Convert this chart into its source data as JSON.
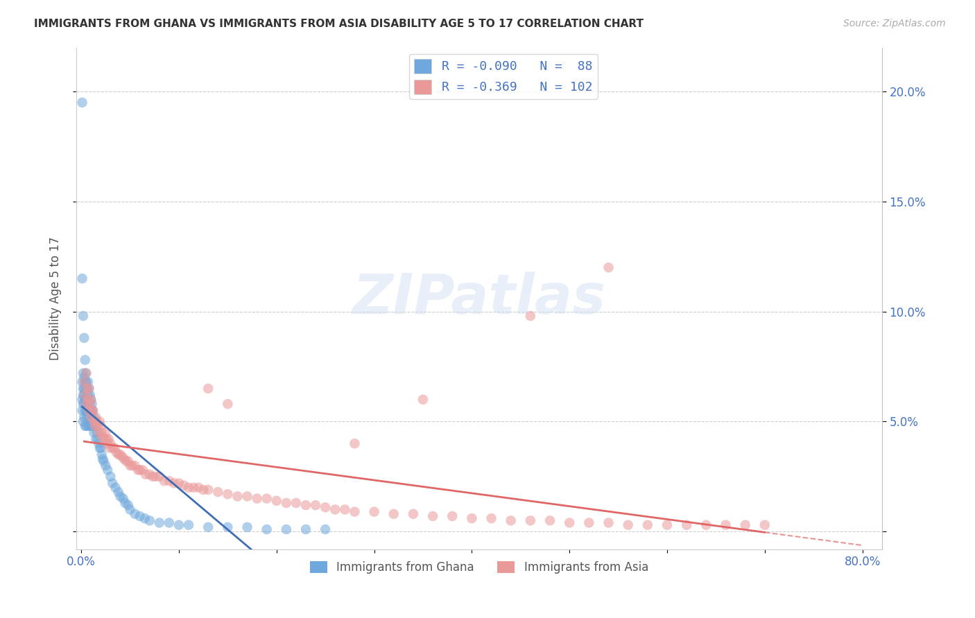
{
  "title": "IMMIGRANTS FROM GHANA VS IMMIGRANTS FROM ASIA DISABILITY AGE 5 TO 17 CORRELATION CHART",
  "source": "Source: ZipAtlas.com",
  "ylabel": "Disability Age 5 to 17",
  "xlim": [
    -0.005,
    0.82
  ],
  "ylim": [
    -0.008,
    0.22
  ],
  "yticks": [
    0.0,
    0.05,
    0.1,
    0.15,
    0.2
  ],
  "ytick_labels_right": [
    "",
    "5.0%",
    "10.0%",
    "15.0%",
    "20.0%"
  ],
  "xtick_labels": [
    "0.0%",
    "",
    "",
    "",
    "",
    "",
    "",
    "",
    "80.0%"
  ],
  "ghana_R": -0.09,
  "ghana_N": 88,
  "asia_R": -0.369,
  "asia_N": 102,
  "ghana_color": "#6fa8dc",
  "asia_color": "#ea9999",
  "ghana_line_color": "#3d6eb5",
  "asia_line_color": "#e06666",
  "watermark": "ZIPatlas",
  "legend_label_ghana": "Immigrants from Ghana",
  "legend_label_asia": "Immigrants from Asia",
  "ghana_x": [
    0.001,
    0.001,
    0.001,
    0.001,
    0.002,
    0.002,
    0.002,
    0.002,
    0.002,
    0.003,
    0.003,
    0.003,
    0.003,
    0.003,
    0.004,
    0.004,
    0.004,
    0.004,
    0.005,
    0.005,
    0.005,
    0.005,
    0.005,
    0.005,
    0.006,
    0.006,
    0.006,
    0.006,
    0.007,
    0.007,
    0.007,
    0.007,
    0.008,
    0.008,
    0.008,
    0.009,
    0.009,
    0.009,
    0.01,
    0.01,
    0.01,
    0.011,
    0.011,
    0.012,
    0.012,
    0.013,
    0.013,
    0.014,
    0.015,
    0.015,
    0.016,
    0.017,
    0.018,
    0.019,
    0.02,
    0.021,
    0.022,
    0.023,
    0.025,
    0.027,
    0.03,
    0.032,
    0.035,
    0.038,
    0.04,
    0.043,
    0.045,
    0.048,
    0.05,
    0.055,
    0.06,
    0.065,
    0.07,
    0.08,
    0.09,
    0.1,
    0.11,
    0.13,
    0.15,
    0.17,
    0.19,
    0.21,
    0.23,
    0.25,
    0.001,
    0.002,
    0.003,
    0.004
  ],
  "ghana_y": [
    0.195,
    0.068,
    0.055,
    0.06,
    0.072,
    0.065,
    0.058,
    0.05,
    0.062,
    0.07,
    0.065,
    0.058,
    0.052,
    0.062,
    0.068,
    0.06,
    0.055,
    0.048,
    0.072,
    0.065,
    0.06,
    0.055,
    0.048,
    0.068,
    0.065,
    0.058,
    0.052,
    0.06,
    0.068,
    0.062,
    0.055,
    0.048,
    0.065,
    0.058,
    0.052,
    0.062,
    0.055,
    0.048,
    0.06,
    0.055,
    0.048,
    0.058,
    0.052,
    0.055,
    0.048,
    0.052,
    0.045,
    0.05,
    0.048,
    0.042,
    0.045,
    0.042,
    0.04,
    0.038,
    0.038,
    0.035,
    0.033,
    0.032,
    0.03,
    0.028,
    0.025,
    0.022,
    0.02,
    0.018,
    0.016,
    0.015,
    0.013,
    0.012,
    0.01,
    0.008,
    0.007,
    0.006,
    0.005,
    0.004,
    0.004,
    0.003,
    0.003,
    0.002,
    0.002,
    0.002,
    0.001,
    0.001,
    0.001,
    0.001,
    0.115,
    0.098,
    0.088,
    0.078
  ],
  "asia_x": [
    0.003,
    0.004,
    0.005,
    0.005,
    0.006,
    0.007,
    0.008,
    0.008,
    0.009,
    0.01,
    0.01,
    0.011,
    0.012,
    0.013,
    0.014,
    0.015,
    0.016,
    0.017,
    0.018,
    0.019,
    0.02,
    0.021,
    0.022,
    0.023,
    0.025,
    0.026,
    0.027,
    0.028,
    0.029,
    0.03,
    0.032,
    0.034,
    0.036,
    0.038,
    0.04,
    0.042,
    0.044,
    0.046,
    0.048,
    0.05,
    0.052,
    0.055,
    0.058,
    0.06,
    0.063,
    0.066,
    0.07,
    0.073,
    0.076,
    0.08,
    0.085,
    0.09,
    0.095,
    0.1,
    0.105,
    0.11,
    0.115,
    0.12,
    0.125,
    0.13,
    0.14,
    0.15,
    0.16,
    0.17,
    0.18,
    0.19,
    0.2,
    0.21,
    0.22,
    0.23,
    0.24,
    0.25,
    0.26,
    0.27,
    0.28,
    0.3,
    0.32,
    0.34,
    0.36,
    0.38,
    0.4,
    0.42,
    0.44,
    0.46,
    0.48,
    0.5,
    0.52,
    0.54,
    0.56,
    0.58,
    0.6,
    0.62,
    0.64,
    0.66,
    0.68,
    0.7,
    0.54,
    0.46,
    0.35,
    0.28,
    0.15,
    0.13
  ],
  "asia_y": [
    0.068,
    0.062,
    0.072,
    0.058,
    0.065,
    0.06,
    0.065,
    0.055,
    0.058,
    0.06,
    0.052,
    0.055,
    0.055,
    0.05,
    0.048,
    0.052,
    0.05,
    0.048,
    0.045,
    0.05,
    0.048,
    0.045,
    0.043,
    0.042,
    0.045,
    0.042,
    0.04,
    0.042,
    0.038,
    0.04,
    0.038,
    0.038,
    0.036,
    0.035,
    0.035,
    0.034,
    0.033,
    0.032,
    0.032,
    0.03,
    0.03,
    0.03,
    0.028,
    0.028,
    0.028,
    0.026,
    0.026,
    0.025,
    0.025,
    0.025,
    0.023,
    0.023,
    0.022,
    0.022,
    0.021,
    0.02,
    0.02,
    0.02,
    0.019,
    0.019,
    0.018,
    0.017,
    0.016,
    0.016,
    0.015,
    0.015,
    0.014,
    0.013,
    0.013,
    0.012,
    0.012,
    0.011,
    0.01,
    0.01,
    0.009,
    0.009,
    0.008,
    0.008,
    0.007,
    0.007,
    0.006,
    0.006,
    0.005,
    0.005,
    0.005,
    0.004,
    0.004,
    0.004,
    0.003,
    0.003,
    0.003,
    0.003,
    0.003,
    0.003,
    0.003,
    0.003,
    0.12,
    0.098,
    0.06,
    0.04,
    0.058,
    0.065
  ]
}
